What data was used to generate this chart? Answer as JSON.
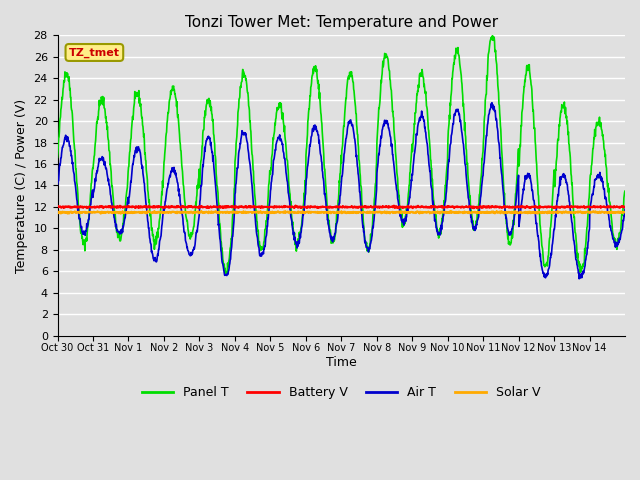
{
  "title": "Tonzi Tower Met: Temperature and Power",
  "xlabel": "Time",
  "ylabel": "Temperature (C) / Power (V)",
  "ylim": [
    0,
    28
  ],
  "yticks": [
    0,
    2,
    4,
    6,
    8,
    10,
    12,
    14,
    16,
    18,
    20,
    22,
    24,
    26,
    28
  ],
  "bg_color": "#e0e0e0",
  "plot_bg_color": "#e0e0e0",
  "grid_color": "#ffffff",
  "series": {
    "panel_t": {
      "color": "#00dd00",
      "label": "Panel T",
      "lw": 1.2
    },
    "battery_v": {
      "color": "#ff0000",
      "label": "Battery V",
      "lw": 1.5
    },
    "air_t": {
      "color": "#0000cc",
      "label": "Air T",
      "lw": 1.2
    },
    "solar_v": {
      "color": "#ffaa00",
      "label": "Solar V",
      "lw": 1.5
    }
  },
  "tz_label": "TZ_tmet",
  "tz_box_color": "#ffee88",
  "tz_text_color": "#cc0000",
  "xtick_labels": [
    "Oct 30",
    "Oct 31",
    "Nov 1",
    "Nov 2",
    "Nov 3",
    "Nov 4",
    "Nov 5",
    "Nov 6",
    "Nov 7",
    "Nov 8",
    "Nov 9",
    "Nov 10",
    "Nov 11",
    "Nov 12",
    "Nov 13",
    "Nov 14"
  ],
  "battery_v_mean": 12.0,
  "solar_v_mean": 11.5,
  "panel_day_peaks": [
    24.5,
    22.0,
    22.5,
    23.0,
    22.0,
    24.5,
    21.5,
    25.0,
    24.5,
    26.0,
    24.5,
    26.5,
    28.0,
    25.0,
    21.5,
    20.0
  ],
  "panel_day_troughs": [
    8.5,
    9.0,
    8.8,
    9.2,
    6.0,
    8.0,
    8.5,
    8.8,
    8.0,
    10.5,
    9.5,
    10.0,
    8.5,
    6.5,
    6.0,
    8.5
  ],
  "air_day_peaks": [
    18.5,
    16.5,
    17.5,
    15.5,
    18.5,
    19.0,
    18.5,
    19.5,
    20.0,
    20.0,
    20.5,
    21.0,
    21.5,
    15.0,
    15.0,
    15.0
  ],
  "air_day_troughs": [
    9.5,
    9.5,
    7.0,
    7.5,
    5.5,
    7.5,
    8.5,
    9.0,
    8.0,
    10.5,
    9.5,
    10.0,
    9.5,
    5.5,
    5.5,
    8.5
  ]
}
